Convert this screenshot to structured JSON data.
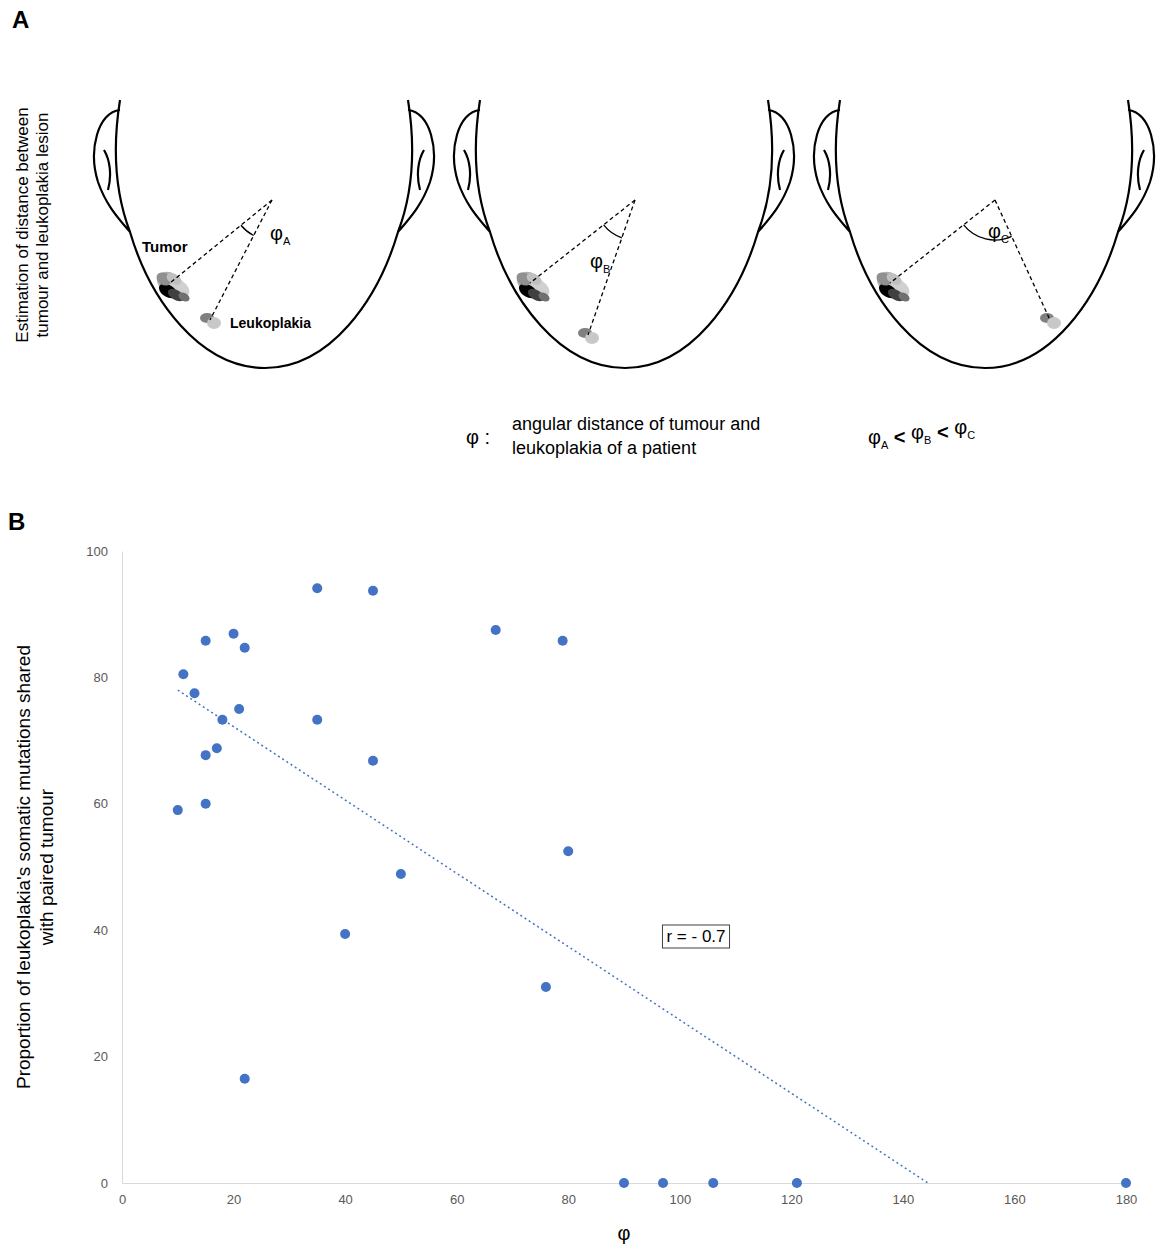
{
  "panel_a": {
    "label": "A",
    "side_title": "Estimation of distance between tumour and leukoplakia lesion",
    "tumor_label": "Tumor",
    "leukoplakia_label": "Leukoplakia",
    "angles": [
      {
        "symbol": "φ",
        "sub": "A"
      },
      {
        "symbol": "φ",
        "sub": "B"
      },
      {
        "symbol": "φ",
        "sub": "C"
      }
    ],
    "legend_symbol": "φ :",
    "legend_text": "angular distance of tumour and leukoplakia of a patient",
    "relation": "<"
  },
  "chart_data": {
    "type": "scatter",
    "label": "B",
    "xlabel": "φ",
    "ylabel": "Proportion of leukoplakia's somatic mutations shared with paired tumour",
    "x": [
      10,
      11,
      13,
      15,
      15,
      15,
      17,
      18,
      20,
      21,
      22,
      22,
      35,
      35,
      40,
      45,
      45,
      50,
      67,
      76,
      79,
      80,
      90,
      97,
      106,
      121,
      180
    ],
    "values": [
      59,
      80.5,
      77.5,
      85.8,
      67.7,
      60,
      68.8,
      73.3,
      86.9,
      75,
      84.7,
      16.5,
      94.1,
      73.3,
      39.4,
      93.7,
      66.8,
      48.9,
      87.5,
      31,
      85.8,
      52.5,
      0,
      0,
      0,
      0,
      0
    ],
    "color": "#4472c4",
    "marker": "circle",
    "xlim": [
      0,
      180
    ],
    "ylim": [
      0,
      100
    ],
    "xticks": [
      0,
      20,
      40,
      60,
      80,
      100,
      120,
      140,
      160,
      180
    ],
    "yticks": [
      0,
      20,
      40,
      60,
      80,
      100
    ],
    "grid": false,
    "trend_line": {
      "x": [
        10,
        144.5
      ],
      "values": [
        78,
        0
      ],
      "line_style": "dotted",
      "color": "#4472c4"
    },
    "annotation": "r = - 0.7"
  }
}
